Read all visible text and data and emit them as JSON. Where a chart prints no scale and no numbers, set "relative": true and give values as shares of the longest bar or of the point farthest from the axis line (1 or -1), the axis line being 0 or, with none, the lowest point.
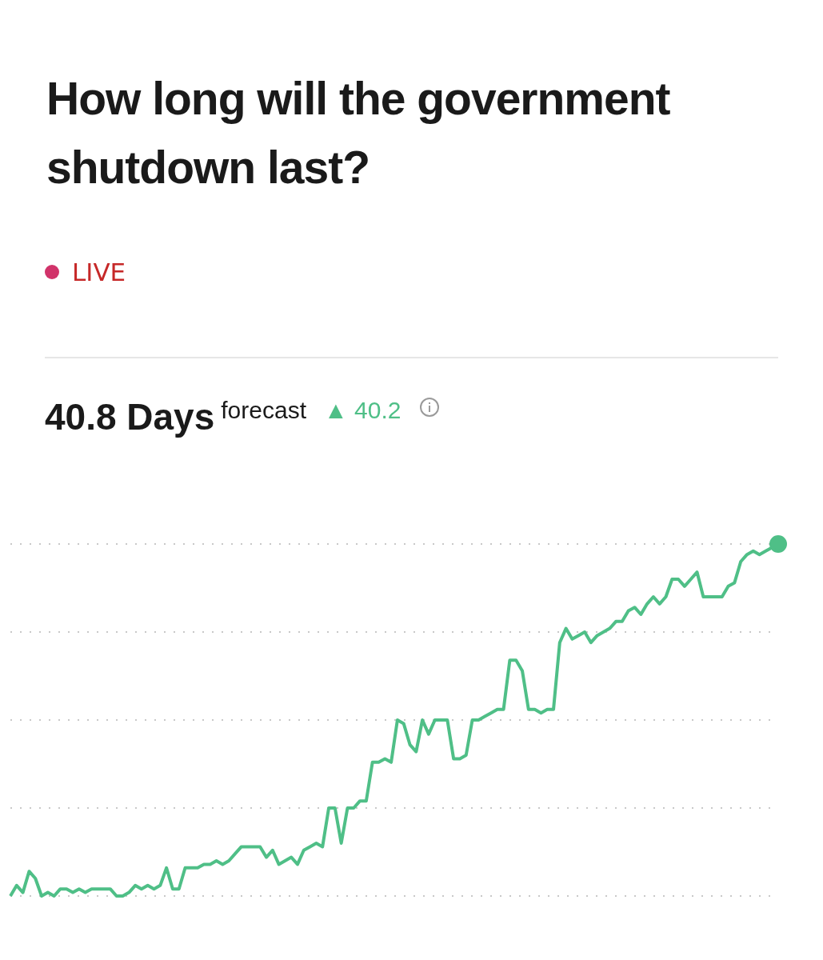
{
  "chart_data": {
    "type": "line",
    "title": "How long will the government shutdown last?",
    "annotations": [
      "LIVE",
      "40.8 Days",
      "forecast",
      "▲ 40.2"
    ],
    "relative": true,
    "grid": "y",
    "legend": false,
    "categories": [
      null,
      null,
      null,
      null,
      null,
      null,
      null,
      null,
      null,
      null,
      null,
      null,
      null,
      null,
      null,
      null,
      null,
      null,
      null,
      null,
      null,
      null,
      null,
      null,
      null,
      null,
      null,
      null,
      null,
      null,
      null,
      null,
      null,
      null,
      null,
      null,
      null,
      null,
      null,
      null,
      null,
      null,
      null,
      null,
      null,
      null,
      null,
      null,
      null,
      null,
      null,
      null,
      null,
      null,
      null,
      null,
      null,
      null,
      null,
      null,
      null,
      null,
      null,
      null,
      null,
      null,
      null,
      null,
      null,
      null,
      null,
      null,
      null,
      null,
      null,
      null,
      null,
      null,
      null,
      null,
      null,
      null,
      null,
      null,
      null,
      null,
      null,
      null,
      null,
      null,
      null,
      null,
      null,
      null,
      null,
      null,
      null,
      null,
      null,
      null,
      null,
      null,
      null,
      null,
      null,
      null,
      null,
      null,
      null,
      null,
      null,
      null,
      null,
      null,
      null,
      null,
      null,
      null,
      null,
      null,
      null,
      null,
      null,
      null
    ],
    "series": [
      {
        "color": "#4fbf87",
        "values": [
          0.0,
          0.03,
          0.01,
          0.07,
          0.05,
          0.0,
          0.01,
          0.0,
          0.02,
          0.02,
          0.01,
          0.02,
          0.01,
          0.02,
          0.02,
          0.02,
          0.02,
          0.0,
          0.0,
          0.01,
          0.03,
          0.02,
          0.03,
          0.02,
          0.03,
          0.08,
          0.02,
          0.02,
          0.08,
          0.08,
          0.08,
          0.09,
          0.09,
          0.1,
          0.09,
          0.1,
          0.12,
          0.14,
          0.14,
          0.14,
          0.14,
          0.11,
          0.13,
          0.09,
          0.1,
          0.11,
          0.09,
          0.13,
          0.14,
          0.15,
          0.14,
          0.25,
          0.25,
          0.15,
          0.25,
          0.25,
          0.27,
          0.27,
          0.38,
          0.38,
          0.39,
          0.38,
          0.5,
          0.49,
          0.43,
          0.41,
          0.5,
          0.46,
          0.5,
          0.5,
          0.5,
          0.39,
          0.39,
          0.4,
          0.5,
          0.5,
          0.51,
          0.52,
          0.53,
          0.53,
          0.67,
          0.67,
          0.64,
          0.53,
          0.53,
          0.52,
          0.53,
          0.53,
          0.72,
          0.76,
          0.73,
          0.74,
          0.75,
          0.72,
          0.74,
          0.75,
          0.76,
          0.78,
          0.78,
          0.81,
          0.82,
          0.8,
          0.83,
          0.85,
          0.83,
          0.85,
          0.9,
          0.9,
          0.88,
          0.9,
          0.92,
          0.85,
          0.85,
          0.85,
          0.85,
          0.88,
          0.89,
          0.95,
          0.97,
          0.98,
          0.97,
          0.98,
          0.99,
          1
        ]
      }
    ]
  }
}
